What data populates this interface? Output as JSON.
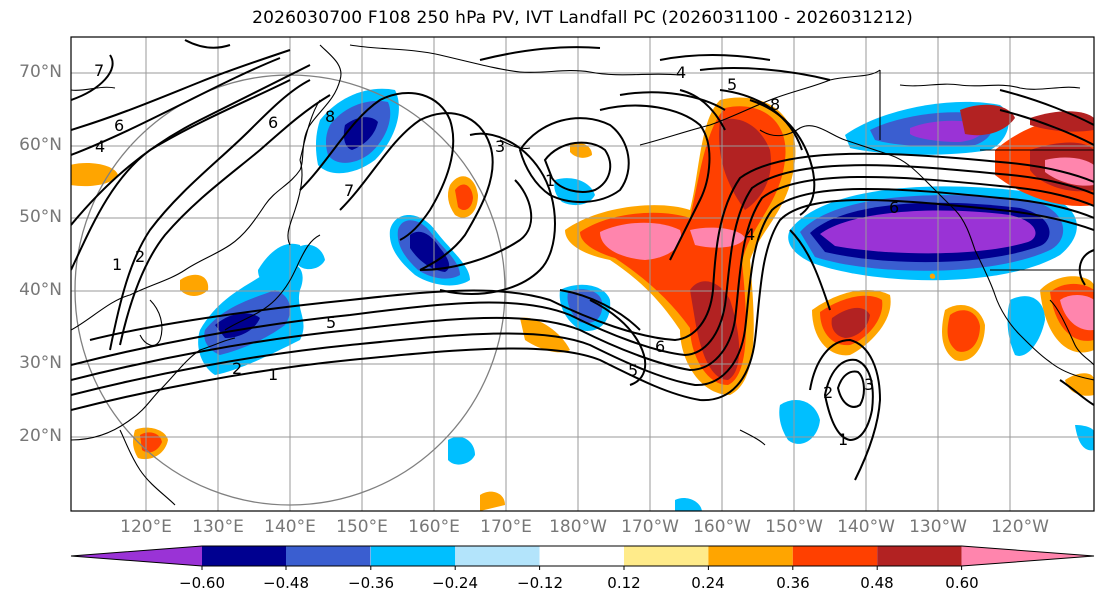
{
  "title": "2026030700 F108 250 hPa PV, IVT Landfall PC (2026031100 - 2026031212)",
  "lat_labels": [
    "70°N",
    "60°N",
    "50°N",
    "40°N",
    "30°N",
    "20°N"
  ],
  "lon_labels": [
    "120°E",
    "130°E",
    "140°E",
    "150°E",
    "160°E",
    "170°E",
    "180°W",
    "170°W",
    "160°W",
    "150°W",
    "140°W",
    "130°W",
    "120°W"
  ],
  "colorbar": {
    "levels": [
      "−0.60",
      "−0.48",
      "−0.36",
      "−0.24",
      "−0.12",
      "0.12",
      "0.24",
      "0.36",
      "0.48",
      "0.60"
    ],
    "colors": [
      "#9a33d6",
      "#000090",
      "#3a5ed0",
      "#00bfff",
      "#b3e4fb",
      "#ffffff",
      "#ffeb8a",
      "#ffa500",
      "#ff4000",
      "#b22222",
      "#ff85ad"
    ]
  },
  "contour_labels": [
    "1",
    "2",
    "4",
    "5",
    "6",
    "7",
    "8",
    "3",
    "5",
    "6",
    "1",
    "4",
    "5",
    "6",
    "8",
    "7",
    "6",
    "2",
    "3",
    "1",
    "1",
    "2",
    "4"
  ],
  "colors": {
    "coast": "#000000",
    "grid": "#9a9a9a",
    "contour": "#000000",
    "circle": "#808080"
  }
}
